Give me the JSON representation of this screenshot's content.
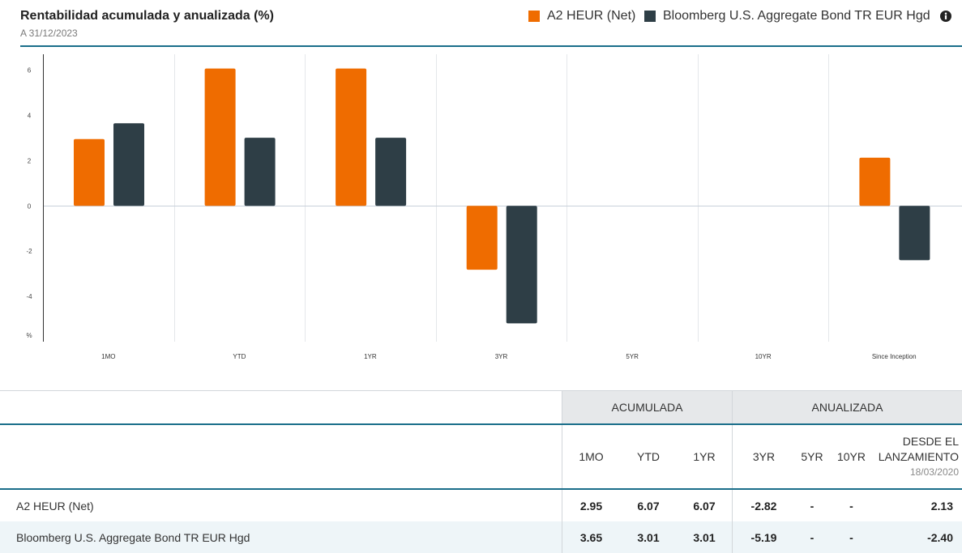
{
  "header": {
    "as_of": "A 31/12/2023",
    "info_icon": "info-circle-icon"
  },
  "colors": {
    "accent_teal": "#1a6e8a",
    "group_header_bg": "#e6e8ea",
    "alt_row_bg": "#eef5f8"
  },
  "chart_data": {
    "type": "bar",
    "title": "Rentabilidad acumulada y anualizada (%)",
    "categories": [
      "1MO",
      "YTD",
      "1YR",
      "3YR",
      "5YR",
      "10YR",
      "Since Inception"
    ],
    "series": [
      {
        "name": "A2 HEUR (Net)",
        "color": "#ef6c00",
        "values": [
          2.95,
          6.07,
          6.07,
          -2.82,
          null,
          null,
          2.13
        ]
      },
      {
        "name": "Bloomberg U.S. Aggregate Bond TR EUR Hgd",
        "color": "#2e3e46",
        "values": [
          3.65,
          3.01,
          3.01,
          -5.19,
          null,
          null,
          -2.4
        ]
      }
    ],
    "xlabel": "",
    "ylabel": "%",
    "yticks": [
      6,
      4,
      2,
      0,
      -2,
      -4
    ],
    "ylim": [
      -6,
      6.7
    ],
    "grid": true,
    "legend_position": "top-right"
  },
  "table": {
    "groups": {
      "cumulative": "ACUMULADA",
      "annualized": "ANUALIZADA"
    },
    "columns": [
      "1MO",
      "YTD",
      "1YR",
      "3YR",
      "5YR",
      "10YR"
    ],
    "since_launch": {
      "label": "DESDE EL LANZAMIENTO",
      "date": "18/03/2020"
    },
    "rows": [
      {
        "name": "A2 HEUR (Net)",
        "values": [
          "2.95",
          "6.07",
          "6.07",
          "-2.82",
          "-",
          "-",
          "2.13"
        ]
      },
      {
        "name": "Bloomberg U.S. Aggregate Bond TR EUR Hgd",
        "values": [
          "3.65",
          "3.01",
          "3.01",
          "-5.19",
          "-",
          "-",
          "-2.40"
        ]
      }
    ]
  }
}
